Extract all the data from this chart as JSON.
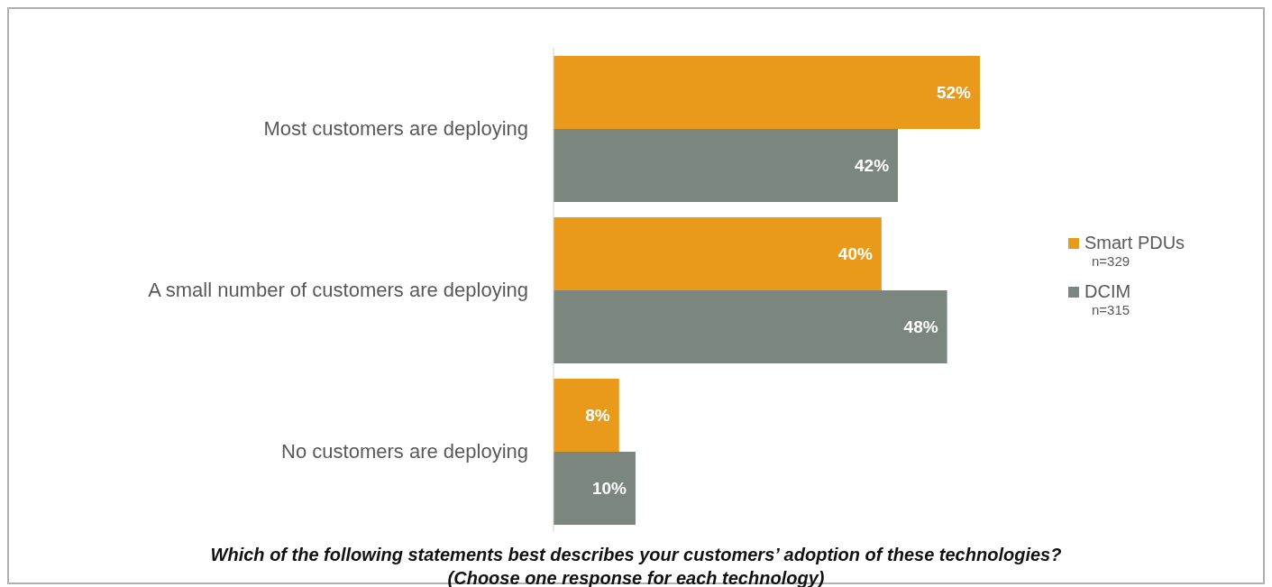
{
  "chart_data": {
    "type": "bar",
    "orientation": "horizontal",
    "categories": [
      "Most customers are deploying",
      "A small number of customers are deploying",
      "No customers are deploying"
    ],
    "series": [
      {
        "name": "Smart PDUs",
        "color": "#ea9a1a",
        "values": [
          52,
          40,
          8
        ],
        "value_labels": [
          "52%",
          "40%",
          "8%"
        ]
      },
      {
        "name": "DCIM",
        "color": "#7b877e",
        "values": [
          42,
          48,
          10
        ],
        "value_labels": [
          "42%",
          "48%",
          "10%"
        ]
      }
    ],
    "legend": "right",
    "tick_labels": "y",
    "xlabel": "Which of the following statements best describes your customers’ adoption of these technologies?\n(Choose one response for each technology)",
    "annotations": [
      "n=329",
      "n=315"
    ]
  }
}
